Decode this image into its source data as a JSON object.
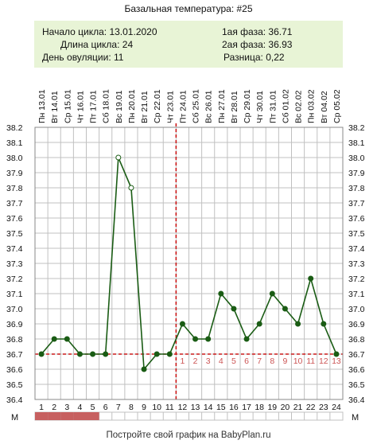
{
  "title": "Базальная температура: #25",
  "info": {
    "cycle_start": "Начало цикла: 13.01.2020",
    "cycle_length": "Длина цикла: 24",
    "ovulation_day": "День овуляции: 11",
    "phase1": "1ая фаза: 36.71",
    "phase2": "2ая фаза: 36.93",
    "difference": "Разница: 0,22"
  },
  "footer": "Постройте свой график на BabyPlan.ru",
  "m_label": "М",
  "colors": {
    "line": "#1a5c14",
    "grid": "#c0c0c0",
    "ovulation_line": "#cc1a1a",
    "coverline": "#cc1a1a",
    "phase_numbers": "#cc5555",
    "menstruation": "#c76060",
    "info_background": "#e8f4d6"
  },
  "chart_data": {
    "type": "line",
    "x_days": [
      1,
      2,
      3,
      4,
      5,
      6,
      7,
      8,
      9,
      10,
      11,
      12,
      13,
      14,
      15,
      16,
      17,
      18,
      19,
      20,
      21,
      22,
      23,
      24
    ],
    "dates": [
      "Пн 13.01",
      "Вт 14.01",
      "Ср 15.01",
      "Чт 16.01",
      "Пт 17.01",
      "Сб 18.01",
      "Вс 19.01",
      "Пн 20.01",
      "Вт 21.01",
      "Ср 22.01",
      "Чт 23.01",
      "Пт 24.01",
      "Сб 25.01",
      "Вс 26.01",
      "Пн 27.01",
      "Вт 28.01",
      "Ср 29.01",
      "Чт 30.01",
      "Пт 31.01",
      "Сб 01.02",
      "Вс 02.02",
      "Пн 03.02",
      "Вт 04.02",
      "Ср 05.02"
    ],
    "temperatures": [
      36.7,
      36.8,
      36.8,
      36.7,
      36.7,
      36.7,
      38.0,
      37.8,
      36.6,
      36.7,
      36.7,
      36.9,
      36.8,
      36.8,
      37.1,
      37.0,
      36.8,
      36.9,
      37.1,
      37.0,
      36.9,
      37.2,
      36.9,
      36.7
    ],
    "hollow_points": [
      7,
      8
    ],
    "ylim": [
      36.4,
      38.2
    ],
    "y_ticks": [
      "38.2",
      "38.1",
      "38.0",
      "37.9",
      "37.8",
      "37.7",
      "37.6",
      "37.5",
      "37.4",
      "37.3",
      "37.2",
      "37.1",
      "37.0",
      "36.9",
      "36.8",
      "36.7",
      "36.6",
      "36.5",
      "36.4"
    ],
    "coverline": 36.7,
    "ovulation_day": 11,
    "phase2_numbers": [
      "1",
      "2",
      "3",
      "4",
      "5",
      "6",
      "7",
      "8",
      "9",
      "10",
      "11",
      "12",
      "13"
    ],
    "menstruation_days": [
      1,
      2,
      3,
      4,
      5
    ],
    "grid": true
  }
}
